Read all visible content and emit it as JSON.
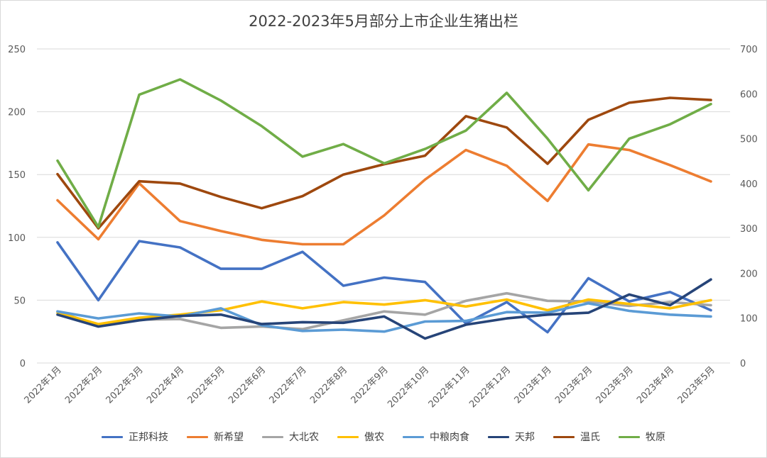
{
  "chart_data": {
    "type": "line",
    "title": "2022-2023年5月部分上市企业生猪出栏",
    "categories": [
      "2022年1月",
      "2022年2月",
      "2022年3月",
      "2022年4月",
      "2022年5月",
      "2022年6月",
      "2022年7月",
      "2022年8月",
      "2022年9月",
      "2022年10月",
      "2022年11月",
      "2022年12月",
      "2023年1月",
      "2023年2月",
      "2023年3月",
      "2023年4月",
      "2023年5月"
    ],
    "ylim_left": [
      0,
      250
    ],
    "yticks_left": [
      "0",
      "50",
      "100",
      "150",
      "200",
      "250"
    ],
    "ylim_right": [
      0,
      700
    ],
    "yticks_right": [
      "0",
      "100",
      "200",
      "300",
      "400",
      "500",
      "600",
      "700"
    ],
    "grid": true,
    "legend_position": "bottom",
    "series": [
      {
        "name": "正邦科技",
        "color": "#4472c4",
        "axis": "left",
        "values": [
          96,
          50,
          97,
          92,
          75,
          75,
          88.5,
          61.5,
          68,
          64.5,
          31.5,
          48.5,
          24.5,
          67.5,
          49,
          56.5,
          42
        ]
      },
      {
        "name": "新希望",
        "color": "#ed7d31",
        "axis": "left",
        "values": [
          129.5,
          98.5,
          143,
          113,
          105,
          98,
          94.5,
          94.5,
          117.5,
          146,
          169.5,
          157,
          129,
          174,
          169.5,
          157.5,
          144.5
        ]
      },
      {
        "name": "大北农",
        "color": "#a5a5a5",
        "axis": "left",
        "values": [
          41,
          30,
          34.5,
          35,
          28,
          29,
          27,
          34,
          41,
          38.5,
          49.5,
          55.5,
          49.5,
          49,
          45.5,
          48.5,
          46
        ]
      },
      {
        "name": "傲农",
        "color": "#ffc000",
        "axis": "left",
        "values": [
          40,
          31,
          36,
          38.5,
          42,
          49,
          43.5,
          48.5,
          46.5,
          50,
          45,
          50.5,
          42,
          50.5,
          47,
          43.5,
          50
        ]
      },
      {
        "name": "中粮肉食",
        "color": "#5b9bd5",
        "axis": "left",
        "values": [
          41,
          35.5,
          39.5,
          37,
          43.5,
          30,
          25.5,
          26.5,
          25,
          33,
          33.5,
          40.5,
          40,
          47.5,
          41.5,
          38.5,
          37
        ]
      },
      {
        "name": "天邦",
        "color": "#264478",
        "axis": "left",
        "values": [
          38.5,
          29,
          34,
          37.5,
          38.5,
          31,
          32.5,
          32,
          37,
          19.5,
          30.5,
          35.5,
          38.5,
          40,
          54.5,
          46,
          66.5
        ]
      },
      {
        "name": "温氏",
        "color": "#9e480e",
        "axis": "right",
        "values": [
          421,
          300,
          405,
          400,
          370,
          345,
          372,
          420,
          443,
          462,
          550,
          525,
          444,
          542,
          580,
          591,
          586
        ]
      },
      {
        "name": "牧原",
        "color": "#70ad47",
        "axis": "right",
        "values": [
          451,
          303,
          598,
          632,
          585,
          528,
          460,
          488,
          445,
          477,
          518,
          602,
          500,
          385,
          500,
          532,
          577
        ]
      }
    ]
  }
}
